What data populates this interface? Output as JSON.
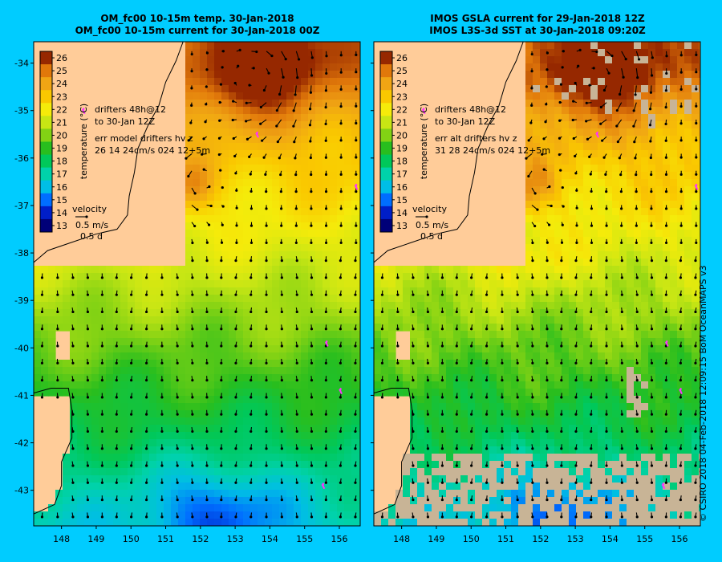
{
  "panels": [
    {
      "id": "left",
      "title_line1": "OM_fc00 10-15m temp. 30-Jan-2018",
      "title_line2": "OM_fc00 10-15m current for 30-Jan-2018 00Z",
      "drifters_line1": "drifters 48h@12",
      "drifters_line2": "to 30-Jan 12Z",
      "err_line1": "err model drifters hv z",
      "err_line2": "26 14 24cm/s 024 12+5m",
      "has_gaps": false
    },
    {
      "id": "right",
      "title_line1": "IMOS GSLA current for 29-Jan-2018 12Z",
      "title_line2": "IMOS L3S-3d SST at 30-Jan-2018 09:20Z",
      "drifters_line1": "drifters 48h@12",
      "drifters_line2": "to 30-Jan 12Z",
      "err_line1": "err alt drifters hv z",
      "err_line2": "31 28 24cm/s 024 12+5m",
      "has_gaps": true
    }
  ],
  "colorbar": {
    "label": "temperature (°C)",
    "ticks": [
      "26",
      "25",
      "24",
      "23",
      "22",
      "21",
      "20",
      "19",
      "18",
      "17",
      "16",
      "15",
      "14",
      "13"
    ],
    "range": [
      13,
      26
    ]
  },
  "velocity_legend": {
    "title": "velocity",
    "speed": "0.5 m/s",
    "time": "0.5 d"
  },
  "axes": {
    "lon_ticks": [
      "148",
      "149",
      "150",
      "151",
      "152",
      "153",
      "154",
      "155",
      "156"
    ],
    "lat_ticks": [
      "-34",
      "-35",
      "-36",
      "-37",
      "-38",
      "-39",
      "-40",
      "-41",
      "-42",
      "-43"
    ]
  },
  "credit": "© CSIRO 2018   04-Feb-2018 12:09:15 BoM OceanMAPS v3",
  "colors": {
    "background": "#00ccff",
    "land": "#ffcc99",
    "no_data": "#c8b496",
    "drifter": "#ff33ff"
  }
}
